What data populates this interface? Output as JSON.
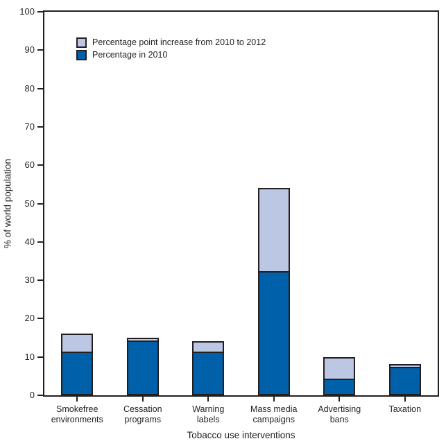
{
  "figure": {
    "background": "#FFFFFF",
    "text_color": "#231F20",
    "axis_color": "#231F20"
  },
  "chart_data": {
    "type": "bar",
    "stacked": true,
    "title": "",
    "xlabel": "Tobacco use interventions",
    "ylabel": "% of world population",
    "ylim": [
      0,
      100
    ],
    "ytick_step": 10,
    "grid": false,
    "legend_position": "top-left-inside",
    "bar_border_color": "#231F20",
    "categories": [
      "Smokefree environments",
      "Cessation programs",
      "Warning labels",
      "Mass media campaigns",
      "Advertising bans",
      "Taxation"
    ],
    "category_label_lines": [
      [
        "Smokefree",
        "environments"
      ],
      [
        "Cessation",
        "programs"
      ],
      [
        "Warning",
        "labels"
      ],
      [
        "Mass media",
        "campaigns"
      ],
      [
        "Advertising",
        "bans"
      ],
      [
        "Taxation"
      ]
    ],
    "series": [
      {
        "name": "Percentage in 2010",
        "color": "#0061AA",
        "values": [
          11,
          14,
          11,
          32,
          4,
          7
        ]
      },
      {
        "name": "Percentage point increase from 2010 to 2012",
        "color": "#BCC7E3",
        "values": [
          5,
          1,
          3,
          22,
          6,
          1
        ]
      }
    ],
    "totals_2012": [
      16,
      15,
      14,
      54,
      10,
      8
    ],
    "ytick_labels": [
      "0",
      "10",
      "20",
      "30",
      "40",
      "50",
      "60",
      "70",
      "80",
      "90",
      "100"
    ]
  }
}
